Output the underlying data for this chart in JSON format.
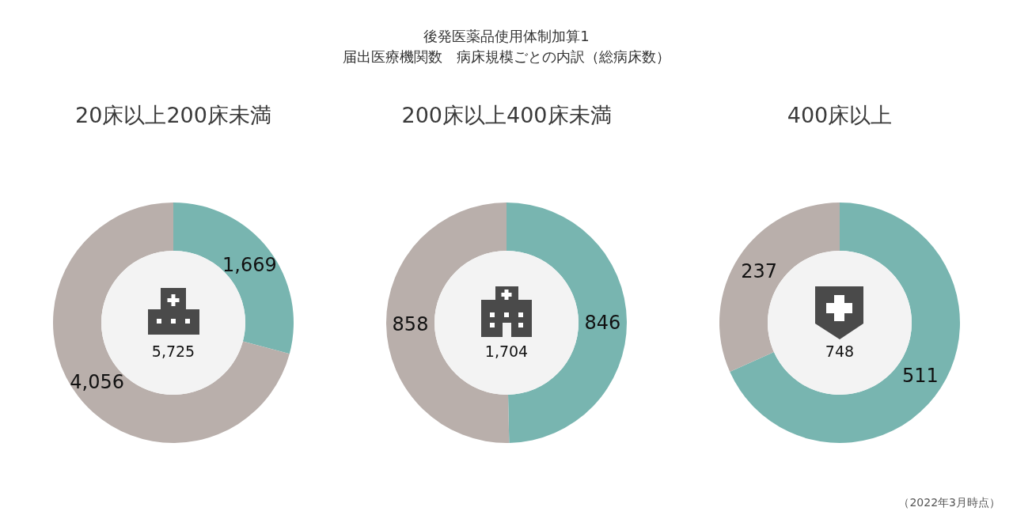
{
  "chart_data": [
    {
      "type": "other",
      "title": "後発医薬品使用体制加算1",
      "subtitle": "届出医療機関数　病床規模ごとの内訳（総病床数）",
      "annotations": [
        "（2022年3月時点）"
      ]
    },
    {
      "type": "donut",
      "title": "20床以上200床未満",
      "categories": [
        null,
        null
      ],
      "values": [
        1669,
        4056
      ],
      "colors": [
        "#78b5b0",
        "#b9afab"
      ],
      "value_labels": [
        "1,669",
        "4,056"
      ],
      "annotations": [
        "5,725"
      ]
    },
    {
      "type": "donut",
      "title": "200床以上400床未満",
      "categories": [
        null,
        null
      ],
      "values": [
        846,
        858
      ],
      "colors": [
        "#78b5b0",
        "#b9afab"
      ],
      "value_labels": [
        "846",
        "858"
      ],
      "annotations": [
        "1,704"
      ]
    },
    {
      "type": "donut",
      "title": "400床以上",
      "categories": [
        null,
        null
      ],
      "values": [
        511,
        237
      ],
      "colors": [
        "#78b5b0",
        "#b9afab"
      ],
      "value_labels": [
        "511",
        "237"
      ],
      "annotations": [
        "748"
      ]
    }
  ]
}
